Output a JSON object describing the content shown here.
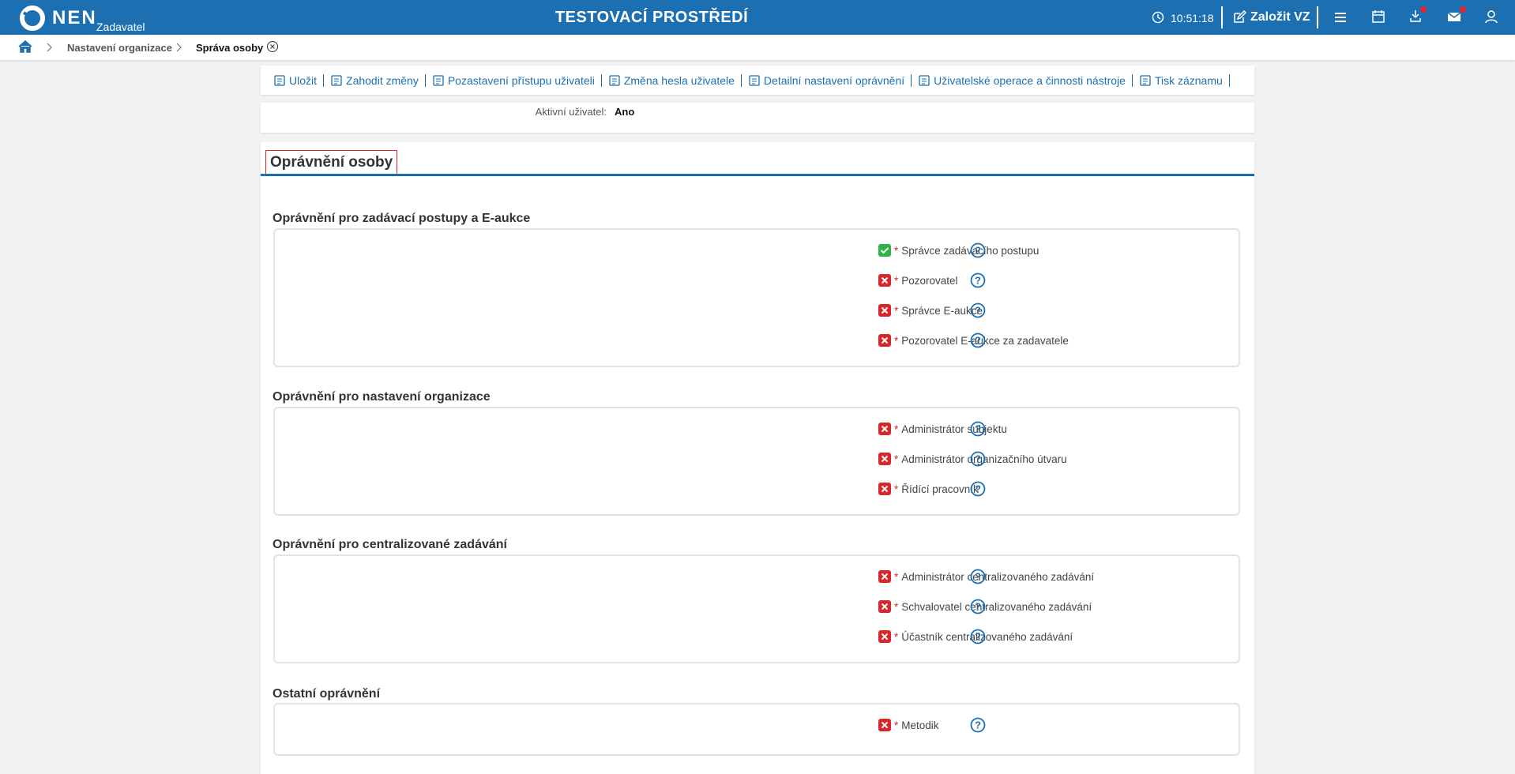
{
  "header": {
    "logo": "NEN",
    "subtitle": "Zadavatel",
    "title": "TESTOVACÍ PROSTŘEDÍ",
    "time": "10:51:18",
    "create_button": "Založit VZ"
  },
  "breadcrumb": [
    "Nastavení organizace",
    "Správa osoby"
  ],
  "toolbar": [
    "Uložit",
    "Zahodit změny",
    "Pozastavení přístupu uživateli",
    "Změna hesla uživatele",
    "Detailní nastavení oprávnění",
    "Uživatelské operace a činnosti nástroje",
    "Tisk záznamu"
  ],
  "active_user": {
    "label": "Aktivní uživatel:",
    "value": "Ano"
  },
  "section": {
    "title": "Oprávnění osoby",
    "required_mark": "*",
    "groups": [
      {
        "title": "Oprávnění pro zadávací postupy a E-aukce",
        "items": [
          {
            "label": "Správce zadávacího postupu",
            "granted": true
          },
          {
            "label": "Pozorovatel",
            "granted": false
          },
          {
            "label": "Správce E-aukce",
            "granted": false
          },
          {
            "label": "Pozorovatel E-aukce za zadavatele",
            "granted": false
          }
        ]
      },
      {
        "title": "Oprávnění pro nastavení organizace",
        "items": [
          {
            "label": "Administrátor subjektu",
            "granted": false
          },
          {
            "label": "Administrátor organizačního útvaru",
            "granted": false
          },
          {
            "label": "Řídící pracovník",
            "granted": false
          }
        ]
      },
      {
        "title": "Oprávnění pro centralizované zadávání",
        "items": [
          {
            "label": "Administrátor centralizovaného zadávání",
            "granted": false
          },
          {
            "label": "Schvalovatel centralizovaného zadávání",
            "granted": false
          },
          {
            "label": "Účastník centralizovaného zadávání",
            "granted": false
          }
        ]
      },
      {
        "title": "Ostatní oprávnění",
        "items": [
          {
            "label": "Metodik",
            "granted": false
          }
        ]
      }
    ]
  }
}
